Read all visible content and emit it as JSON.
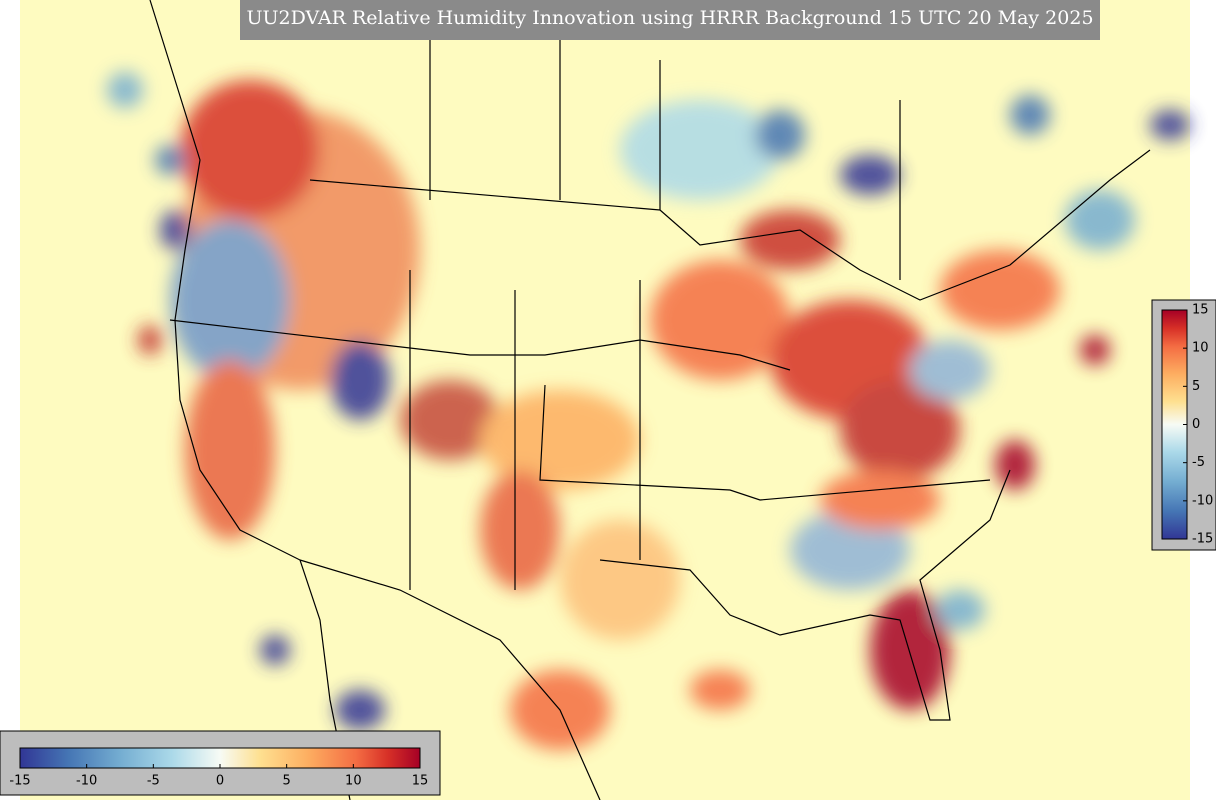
{
  "title": "UU2DVAR Relative Humidity Innovation using HRRR Background 15 UTC 20 May 2025",
  "colorbar_right": {
    "ticks": [
      15,
      10,
      5,
      0,
      -5,
      -10,
      -15
    ]
  },
  "colorbar_bottom": {
    "ticks": [
      -15,
      -10,
      -5,
      0,
      5,
      10,
      15
    ]
  }
}
